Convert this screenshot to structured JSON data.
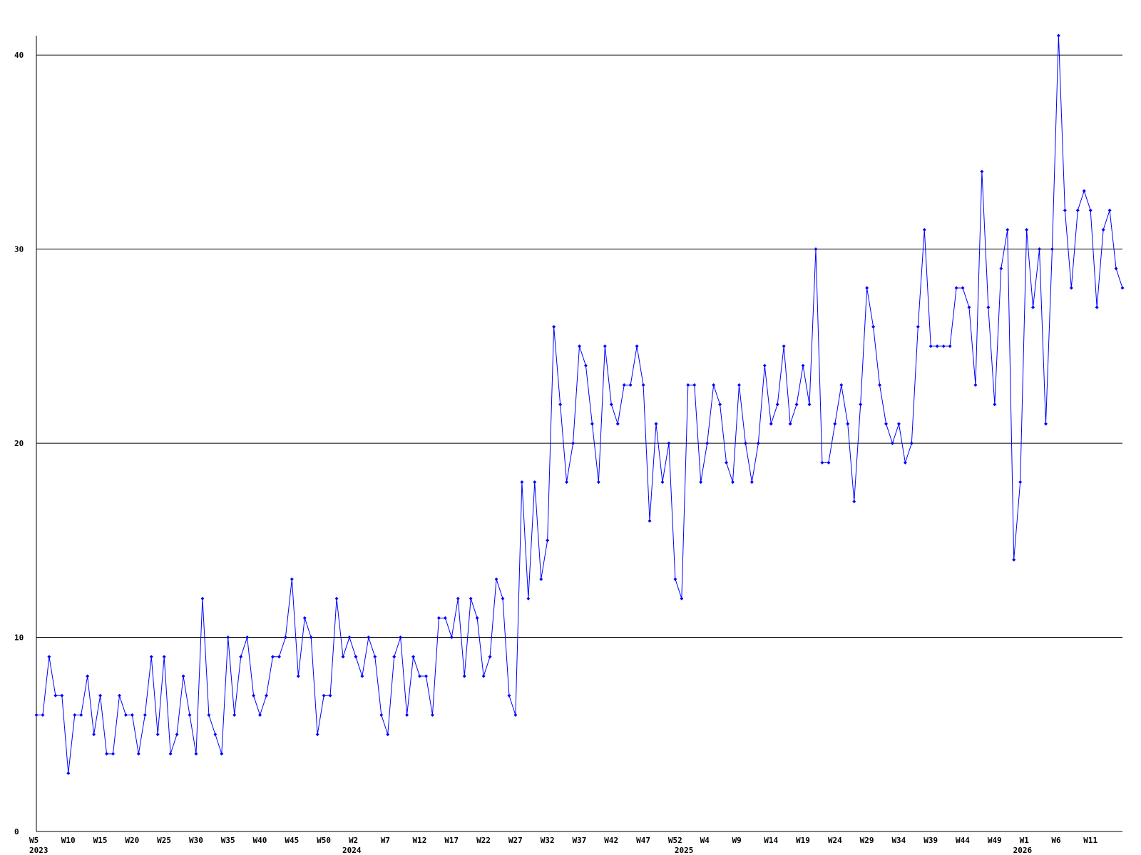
{
  "chart_data": {
    "type": "line",
    "categories": [
      "W5",
      null,
      null,
      null,
      null,
      "W10",
      null,
      null,
      null,
      null,
      "W15",
      null,
      null,
      null,
      null,
      "W20",
      null,
      null,
      null,
      null,
      "W25",
      null,
      null,
      null,
      null,
      "W30",
      null,
      null,
      null,
      null,
      "W35",
      null,
      null,
      null,
      null,
      "W40",
      null,
      null,
      null,
      null,
      "W45",
      null,
      null,
      null,
      null,
      "W50",
      null,
      null,
      null,
      null,
      "W2",
      null,
      null,
      null,
      null,
      "W7",
      null,
      null,
      null,
      null,
      "W12",
      null,
      null,
      null,
      null,
      "W17",
      null,
      null,
      null,
      null,
      "W22",
      null,
      null,
      null,
      null,
      "W27",
      null,
      null,
      null,
      null,
      "W32",
      null,
      null,
      null,
      null,
      "W37",
      null,
      null,
      null,
      null,
      "W42",
      null,
      null,
      null,
      null,
      "W47",
      null,
      null,
      null,
      null,
      "W52",
      null,
      null,
      null,
      null,
      "W4",
      null,
      null,
      null,
      null,
      "W9",
      null,
      null,
      null,
      null,
      "W14",
      null,
      null,
      null,
      null,
      "W19",
      null,
      null,
      null,
      null,
      "W24",
      null,
      null,
      null,
      null,
      "W29",
      null,
      null,
      null,
      null,
      "W34",
      null,
      null,
      null,
      null,
      "W39",
      null,
      null,
      null,
      null,
      "W44",
      null,
      null,
      null,
      null,
      "W49",
      null,
      null,
      null,
      null,
      "W1",
      null,
      null,
      null,
      null,
      "W6",
      null,
      null,
      null,
      null,
      "W11",
      null,
      null,
      null,
      null,
      null
    ],
    "category_years": [
      "2023",
      null,
      null,
      null,
      null,
      null,
      null,
      null,
      null,
      null,
      null,
      null,
      null,
      null,
      null,
      null,
      null,
      null,
      null,
      null,
      null,
      null,
      null,
      null,
      null,
      null,
      null,
      null,
      null,
      null,
      null,
      null,
      null,
      null,
      null,
      null,
      null,
      null,
      null,
      null,
      null,
      null,
      null,
      null,
      null,
      null,
      null,
      null,
      null,
      "2024",
      null,
      null,
      null,
      null,
      null,
      null,
      null,
      null,
      null,
      null,
      null,
      null,
      null,
      null,
      null,
      null,
      null,
      null,
      null,
      null,
      null,
      null,
      null,
      null,
      null,
      null,
      null,
      null,
      null,
      null,
      null,
      null,
      null,
      null,
      null,
      null,
      null,
      null,
      null,
      null,
      null,
      null,
      null,
      null,
      null,
      null,
      null,
      null,
      null,
      null,
      null,
      "2025",
      null,
      null,
      null,
      null,
      null,
      null,
      null,
      null,
      null,
      null,
      null,
      null,
      null,
      null,
      null,
      null,
      null,
      null,
      null,
      null,
      null,
      null,
      null,
      null,
      null,
      null,
      null,
      null,
      null,
      null,
      null,
      null,
      null,
      null,
      null,
      null,
      null,
      null,
      null,
      null,
      null,
      null,
      null,
      null,
      null,
      null,
      null,
      null,
      null,
      null,
      null,
      null,
      "2026",
      null,
      null,
      null,
      null,
      null,
      null,
      null,
      null,
      null,
      null,
      null,
      null,
      null,
      null,
      null
    ],
    "series": [
      {
        "color": "#0000ff",
        "values": [
          6,
          6,
          9,
          7,
          7,
          3,
          6,
          6,
          8,
          5,
          7,
          4,
          4,
          7,
          6,
          6,
          4,
          6,
          9,
          5,
          9,
          4,
          5,
          8,
          6,
          4,
          12,
          6,
          5,
          4,
          10,
          6,
          9,
          10,
          7,
          6,
          7,
          9,
          9,
          10,
          13,
          8,
          11,
          10,
          5,
          7,
          7,
          12,
          9,
          10,
          9,
          8,
          10,
          9,
          6,
          5,
          9,
          10,
          6,
          9,
          8,
          8,
          6,
          11,
          11,
          10,
          12,
          8,
          12,
          11,
          8,
          9,
          13,
          12,
          7,
          6,
          18,
          12,
          18,
          13,
          15,
          26,
          22,
          18,
          20,
          25,
          24,
          21,
          18,
          25,
          22,
          21,
          23,
          23,
          25,
          23,
          16,
          21,
          18,
          20,
          13,
          12,
          23,
          23,
          18,
          20,
          23,
          22,
          19,
          18,
          23,
          20,
          18,
          20,
          24,
          21,
          22,
          25,
          21,
          22,
          24,
          22,
          30,
          19,
          19,
          21,
          23,
          21,
          17,
          22,
          28,
          26,
          23,
          21,
          20,
          21,
          19,
          20,
          26,
          31,
          25,
          25,
          25,
          25,
          28,
          28,
          27,
          23,
          34,
          27,
          22,
          29,
          31,
          14,
          18,
          31,
          27,
          30,
          21,
          30,
          41,
          32,
          28,
          32,
          33,
          32,
          27,
          31,
          32,
          29,
          28
        ]
      }
    ],
    "ylim": [
      0,
      41
    ],
    "yticks": [
      0,
      10,
      20,
      30,
      40
    ],
    "grid": true
  }
}
